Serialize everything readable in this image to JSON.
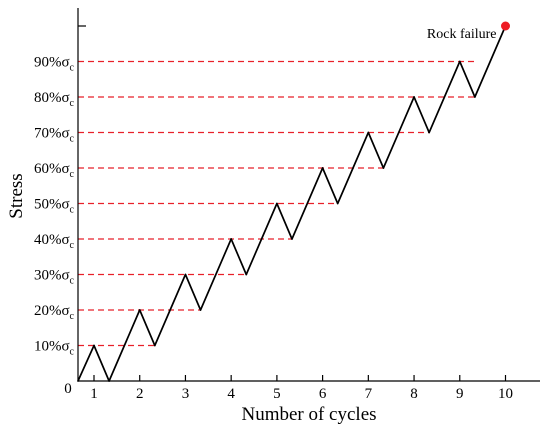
{
  "chart_data": {
    "type": "line",
    "xlabel": "Number of cycles",
    "ylabel": "Stress",
    "x_ticks": [
      "1",
      "2",
      "3",
      "4",
      "5",
      "6",
      "7",
      "8",
      "9",
      "10"
    ],
    "xlim": [
      0.65,
      10.8
    ],
    "origin_label": "0",
    "y_tick_labels": [
      {
        "value": 10,
        "prefix": "10%",
        "sigma": "σ",
        "sub": "c"
      },
      {
        "value": 20,
        "prefix": "20%",
        "sigma": "σ",
        "sub": "c"
      },
      {
        "value": 30,
        "prefix": "30%",
        "sigma": "σ",
        "sub": "c"
      },
      {
        "value": 40,
        "prefix": "40%",
        "sigma": "σ",
        "sub": "c"
      },
      {
        "value": 50,
        "prefix": "50%",
        "sigma": "σ",
        "sub": "c"
      },
      {
        "value": 60,
        "prefix": "60%",
        "sigma": "σ",
        "sub": "c"
      },
      {
        "value": 70,
        "prefix": "70%",
        "sigma": "σ",
        "sub": "c"
      },
      {
        "value": 80,
        "prefix": "80%",
        "sigma": "σ",
        "sub": "c"
      },
      {
        "value": 90,
        "prefix": "90%",
        "sigma": "σ",
        "sub": "c"
      }
    ],
    "ylim": [
      0,
      106
    ],
    "series": [
      {
        "style": "solid",
        "color": "#000000",
        "points": [
          [
            0.65,
            0
          ],
          [
            1,
            10
          ],
          [
            1.33,
            0
          ],
          [
            2,
            20
          ],
          [
            2.33,
            10
          ],
          [
            3,
            30
          ],
          [
            3.33,
            20
          ],
          [
            4,
            40
          ],
          [
            4.33,
            30
          ],
          [
            5,
            50
          ],
          [
            5.33,
            40
          ],
          [
            6,
            60
          ],
          [
            6.33,
            50
          ],
          [
            7,
            70
          ],
          [
            7.33,
            60
          ],
          [
            8,
            80
          ],
          [
            8.33,
            70
          ],
          [
            9,
            90
          ],
          [
            9.33,
            80
          ],
          [
            10,
            100
          ]
        ]
      }
    ],
    "reference_lines": {
      "style": "dashed",
      "color": "#e8202a",
      "lines": [
        {
          "y": 10,
          "x_start": 0.65,
          "x_end": 2.33
        },
        {
          "y": 20,
          "x_start": 0.65,
          "x_end": 3.33
        },
        {
          "y": 30,
          "x_start": 0.65,
          "x_end": 4.33
        },
        {
          "y": 40,
          "x_start": 0.65,
          "x_end": 5.33
        },
        {
          "y": 50,
          "x_start": 0.65,
          "x_end": 6.33
        },
        {
          "y": 60,
          "x_start": 0.65,
          "x_end": 7.33
        },
        {
          "y": 70,
          "x_start": 0.65,
          "x_end": 8.33
        },
        {
          "y": 80,
          "x_start": 0.65,
          "x_end": 9.33
        },
        {
          "y": 90,
          "x_start": 0.65,
          "x_end": 9.33
        }
      ]
    },
    "failure_point": {
      "x": 10,
      "y": 100,
      "label": "Rock failure",
      "color": "#ee1c24"
    },
    "grid": false
  }
}
